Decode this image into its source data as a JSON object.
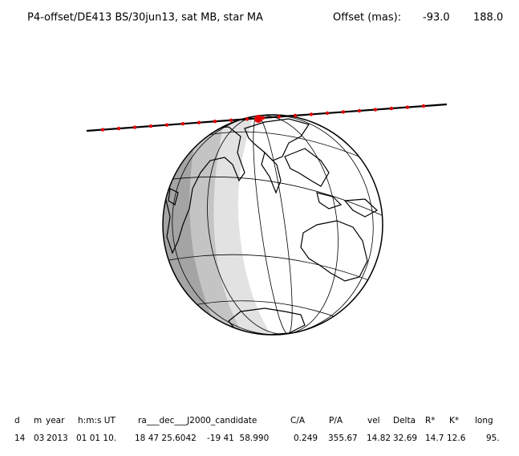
{
  "header": {
    "title": "P4-offset/DE413 BS/30jun13, sat MB, star MA",
    "offset_label": "Offset (mas):",
    "offset_values": [
      "-93.0",
      "188.0"
    ]
  },
  "table": {
    "columns": [
      "d",
      "m",
      "year",
      "h:m:s UT",
      "ra___dec___J2000_candidate",
      "C/A",
      "P/A",
      "vel",
      "Delta",
      "R*",
      "K*",
      "long"
    ],
    "rows": [
      [
        "14",
        "03",
        "2013",
        "01 01 10.",
        "18 47 25.6042",
        "-19 41  58.990",
        "0.249",
        "355.67",
        "14.82",
        "32.69",
        "14.7",
        "12.6",
        "95."
      ]
    ]
  }
}
